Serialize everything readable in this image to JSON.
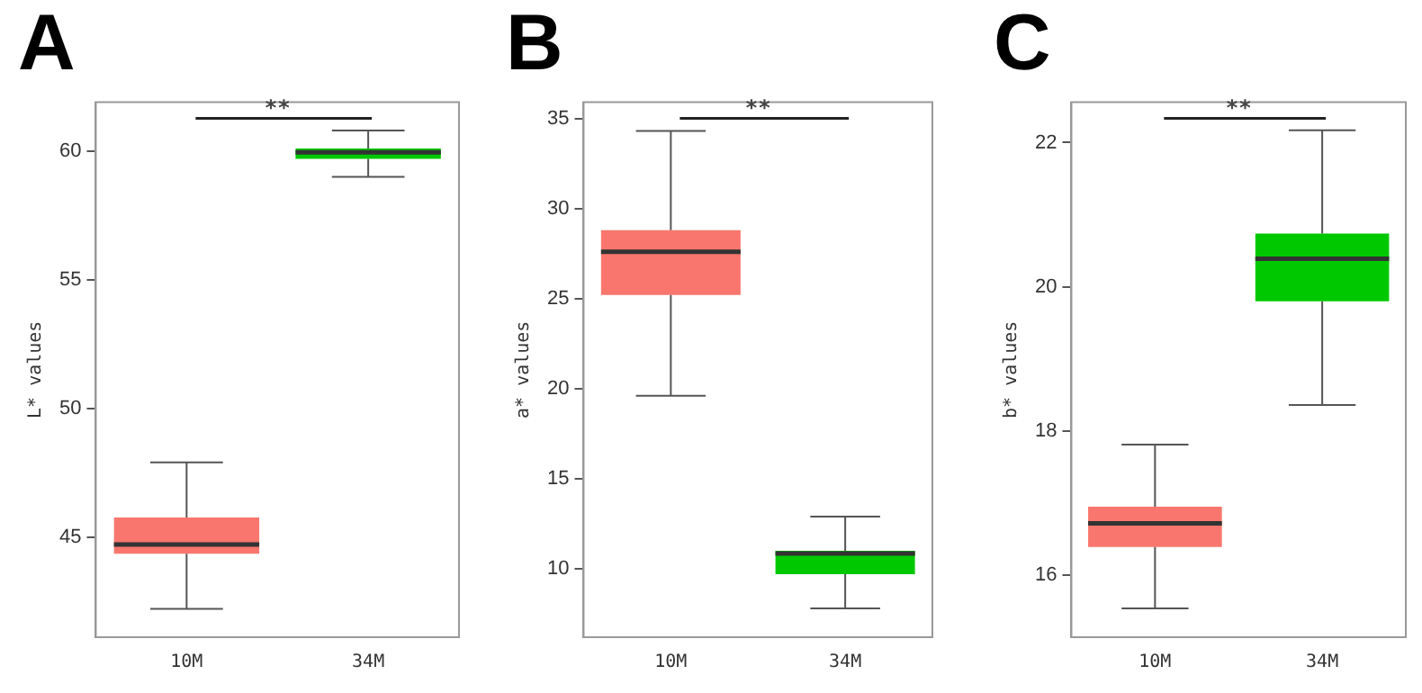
{
  "chart_data": [
    {
      "type": "box",
      "title": "A",
      "ylabel": "L* values",
      "categories": [
        "10M",
        "34M"
      ],
      "colors": [
        "#f8766d",
        "#00c800"
      ],
      "boxes": [
        {
          "low": 42.2,
          "q1": 44.35,
          "median": 44.7,
          "q3": 45.75,
          "high": 47.9
        },
        {
          "low": 59.0,
          "q1": 59.7,
          "median": 59.95,
          "q3": 60.1,
          "high": 60.8
        }
      ],
      "ylim": [
        41.1,
        61.9
      ],
      "yticks": [
        45,
        50,
        55,
        60
      ],
      "annotations": [
        "**"
      ]
    },
    {
      "type": "box",
      "title": "B",
      "ylabel": "a* values",
      "categories": [
        "10M",
        "34M"
      ],
      "colors": [
        "#f8766d",
        "#00c800"
      ],
      "boxes": [
        {
          "low": 19.6,
          "q1": 25.2,
          "median": 27.6,
          "q3": 28.8,
          "high": 34.3
        },
        {
          "low": 7.8,
          "q1": 9.7,
          "median": 10.85,
          "q3": 11.0,
          "high": 12.9
        }
      ],
      "ylim": [
        6.2,
        35.9
      ],
      "yticks": [
        10,
        15,
        20,
        25,
        30,
        35
      ],
      "annotations": [
        "**"
      ]
    },
    {
      "type": "box",
      "title": "C",
      "ylabel": "b* values",
      "categories": [
        "10M",
        "34M"
      ],
      "colors": [
        "#f8766d",
        "#00c800"
      ],
      "boxes": [
        {
          "low": 15.54,
          "q1": 16.39,
          "median": 16.72,
          "q3": 16.95,
          "high": 17.81
        },
        {
          "low": 18.36,
          "q1": 19.8,
          "median": 20.39,
          "q3": 20.74,
          "high": 22.17
        }
      ],
      "ylim": [
        15.14,
        22.56
      ],
      "yticks": [
        16,
        18,
        20,
        22
      ],
      "annotations": [
        "**"
      ]
    }
  ]
}
